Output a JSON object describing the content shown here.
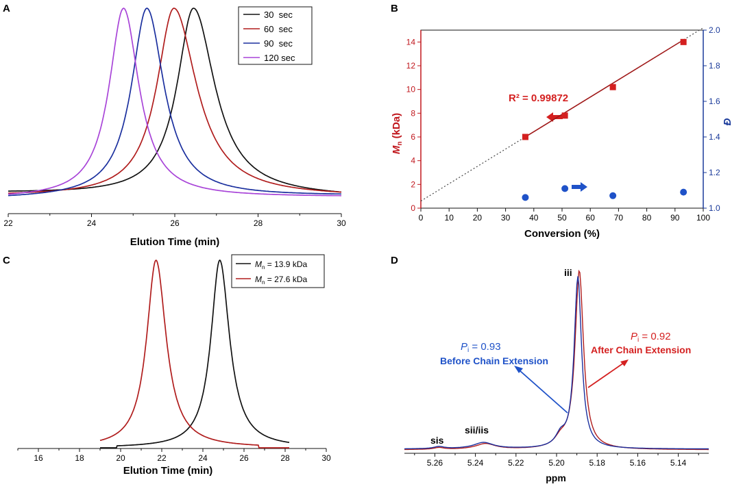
{
  "colors": {
    "black": "#111111",
    "red": "#b01c1c",
    "blue": "#1a2f9e",
    "purple": "#a844d8",
    "bred": "#d42020",
    "bblue": "#1f52c8",
    "axisred": "#c0161c",
    "axisblue": "#1a3a9a"
  },
  "chart_data": [
    {
      "panel": "A",
      "type": "line",
      "xlabel": "Elution Time (min)",
      "xlim": [
        22,
        30
      ],
      "xticks": [
        22,
        24,
        26,
        28,
        30
      ],
      "legend": {
        "placement": "top-right",
        "entries": [
          {
            "label": "30  sec",
            "color": "black"
          },
          {
            "label": "60  sec",
            "color": "red"
          },
          {
            "label": "90  sec",
            "color": "blue"
          },
          {
            "label": "120 sec",
            "color": "purple"
          }
        ]
      },
      "series": [
        {
          "name": "30 sec",
          "color": "black",
          "center": 26.45,
          "wl": 0.48,
          "wr": 0.62,
          "base_start": 0.035,
          "base_end": 0.012
        },
        {
          "name": "60 sec",
          "color": "red",
          "center": 25.98,
          "wl": 0.5,
          "wr": 0.66,
          "base_start": 0.02,
          "base_end": 0.015
        },
        {
          "name": "90 sec",
          "color": "blue",
          "center": 25.33,
          "wl": 0.45,
          "wr": 0.5,
          "base_start": 0.005,
          "base_end": 0.02
        },
        {
          "name": "120 sec",
          "color": "purple",
          "center": 24.77,
          "wl": 0.42,
          "wr": 0.45,
          "base_start": 0.008,
          "base_end": 0.015
        }
      ]
    },
    {
      "panel": "B",
      "type": "scatter",
      "xlabel": "Conversion (%)",
      "ylabel": "M",
      "ylabel_sub": "n",
      "ylabel_unit": " (kDa)",
      "y2label": "Đ",
      "xlim": [
        0,
        100
      ],
      "ylim": [
        0,
        15
      ],
      "y2lim": [
        1.0,
        2.0
      ],
      "xticks": [
        0,
        10,
        20,
        30,
        40,
        50,
        60,
        70,
        80,
        90,
        100
      ],
      "yticks": [
        0,
        2,
        4,
        6,
        8,
        10,
        12,
        14
      ],
      "y2ticks": [
        "1.0",
        "1.2",
        "1.4",
        "1.6",
        "1.8",
        "2.0"
      ],
      "annotation": "R² = 0.99872",
      "mn_points": [
        [
          37,
          6.0
        ],
        [
          51,
          7.8
        ],
        [
          68,
          10.2
        ],
        [
          93,
          14.0
        ]
      ],
      "fit_line": [
        [
          0,
          0.6
        ],
        [
          100,
          15.2
        ]
      ],
      "dispersity_points": [
        [
          37,
          1.06
        ],
        [
          51,
          1.11
        ],
        [
          68,
          1.07
        ],
        [
          93,
          1.09
        ]
      ]
    },
    {
      "panel": "C",
      "type": "line",
      "xlabel": "Elution Time (min)",
      "xlim": [
        15,
        30
      ],
      "xticks": [
        16,
        18,
        20,
        22,
        24,
        26,
        28,
        30
      ],
      "legend": {
        "placement": "top-right",
        "entries": [
          {
            "label_pre": "M",
            "label_sub": "n",
            "label_post": " = 13.9 kDa",
            "color": "black"
          },
          {
            "label_pre": "M",
            "label_sub": "n",
            "label_post": " = 27.6 kDa",
            "color": "red"
          }
        ]
      },
      "series": [
        {
          "name": "Mn = 13.9 kDa",
          "color": "black",
          "center": 24.82,
          "wl": 0.52,
          "wr": 0.58,
          "base_start": 0.0,
          "base_end": 0.0
        },
        {
          "name": "Mn = 27.6 kDa",
          "color": "red",
          "center": 21.72,
          "wl": 0.55,
          "wr": 0.6,
          "base_start": 0.0,
          "base_end": 0.0
        }
      ]
    },
    {
      "panel": "D",
      "type": "line",
      "xlabel": "ppm",
      "xlim": [
        5.275,
        5.125
      ],
      "xticks": [
        "5.26",
        "5.24",
        "5.22",
        "5.20",
        "5.18",
        "5.16",
        "5.14"
      ],
      "xtick_values": [
        5.26,
        5.24,
        5.22,
        5.2,
        5.18,
        5.16,
        5.14
      ],
      "peak_labels": [
        "sis",
        "sii/iis",
        "iii"
      ],
      "annotations": {
        "before": {
          "p": "P",
          "sub": "i",
          "value": " = 0.93",
          "text": "Before Chain Extension"
        },
        "after": {
          "p": "P",
          "sub": "i",
          "value": " = 0.92",
          "text": "After Chain Extension"
        }
      },
      "series": [
        {
          "name": "Before Chain Extension",
          "color": "blue"
        },
        {
          "name": "After Chain Extension",
          "color": "red"
        }
      ]
    }
  ],
  "panels": {
    "a": "A",
    "b": "B",
    "c": "C",
    "d": "D"
  }
}
